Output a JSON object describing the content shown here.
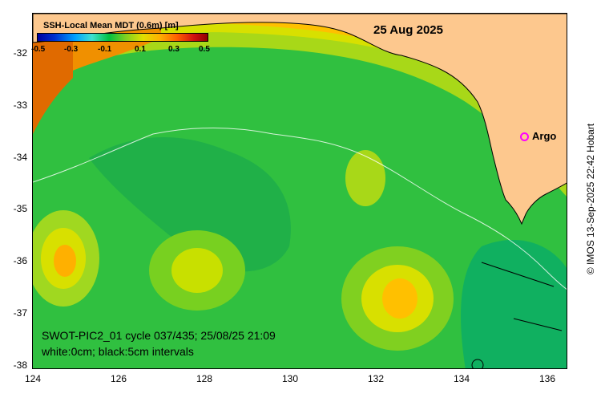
{
  "date_label": "25 Aug 2025",
  "colorbar": {
    "title": "SSH-Local Mean MDT (0.6m) [m]",
    "ticks": [
      "-0.5",
      "-0.3",
      "-0.1",
      "0.1",
      "0.3",
      "0.5"
    ],
    "range": [
      -0.5,
      0.5
    ]
  },
  "y_ticks": [
    "-32",
    "-33",
    "-34",
    "-35",
    "-36",
    "-37",
    "-38"
  ],
  "x_ticks": [
    "124",
    "126",
    "128",
    "130",
    "132",
    "134",
    "136"
  ],
  "info": {
    "line1": "SWOT-PIC2_01 cycle 037/435; 25/08/25 21:09",
    "line2": "white:0cm; black:5cm intervals"
  },
  "argo_label": "Argo",
  "credit": "© IMOS 13-Sep-2025 22:42 Hobart",
  "colors": {
    "land": "#fdc88e",
    "orange_high": "#e06a00",
    "yellow": "#e8e000",
    "green": "#38c838",
    "argo": "#ff00ff"
  }
}
